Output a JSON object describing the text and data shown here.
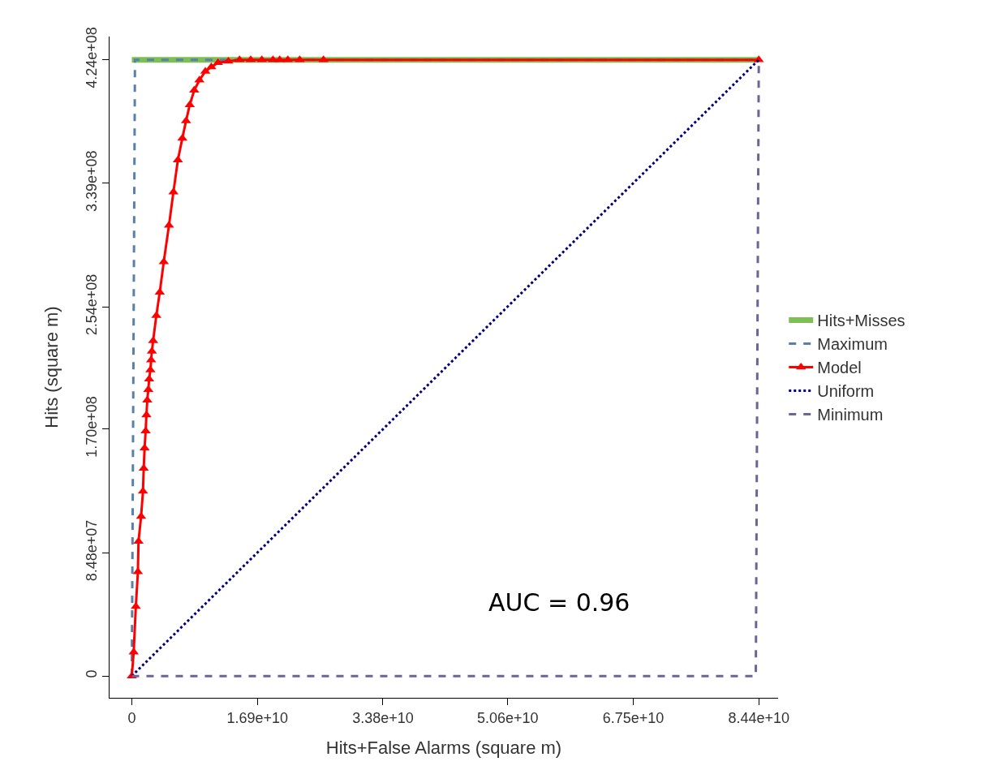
{
  "chart_data": {
    "type": "line",
    "xlabel": "Hits+False Alarms (square m)",
    "ylabel": "Hits (square m)",
    "xlim": [
      -3000000000.0,
      87000000000.0
    ],
    "ylim": [
      -15000000.0,
      440000000.0
    ],
    "xticks": [
      0,
      {
        "value": 16900000000,
        "label": "1.69e+10"
      },
      {
        "value": 33800000000,
        "label": "3.38e+10"
      },
      {
        "value": 50600000000,
        "label": "5.06e+10"
      },
      {
        "value": 67500000000,
        "label": "6.75e+10"
      },
      {
        "value": 84400000000,
        "label": "8.44e+10"
      }
    ],
    "yticks": [
      0,
      {
        "value": 84800000,
        "label": "8.48e+07"
      },
      {
        "value": 170000000,
        "label": "1.70e+08"
      },
      {
        "value": 254000000,
        "label": "2.54e+08"
      },
      {
        "value": 339000000,
        "label": "3.39e+08"
      },
      {
        "value": 424000000,
        "label": "4.24e+08"
      }
    ],
    "grid": false,
    "legend": "right",
    "annotations": [
      "AUC = 0.96"
    ],
    "series": [
      {
        "name": "Hits+Misses",
        "color": "#7cc055",
        "line_style": "solid",
        "marker": "none",
        "x": [
          0,
          84400000000
        ],
        "values": [
          424000000,
          424000000
        ]
      },
      {
        "name": "Maximum",
        "color": "#5a7fa8",
        "line_style": "dashed",
        "marker": "none",
        "x": [
          0,
          424000000,
          84400000000
        ],
        "values": [
          0,
          424000000,
          424000000
        ]
      },
      {
        "name": "Model",
        "color": "#ff0000",
        "line_style": "solid",
        "marker": "triangle",
        "x": [
          0,
          250000000,
          540000000,
          820000000,
          900000000,
          1250000000,
          1500000000,
          1600000000,
          1720000000,
          1860000000,
          1970000000,
          2080000000,
          2220000000,
          2330000000,
          2500000000,
          2600000000,
          2700000000,
          2870000000,
          3300000000,
          3760000000,
          4300000000,
          5000000000,
          5600000000,
          6200000000,
          6800000000,
          7300000000,
          7800000000,
          8400000000,
          9100000000,
          9900000000,
          10700000000,
          11600000000,
          13000000000,
          14500000000,
          16000000000,
          17500000000,
          19000000000,
          19900000000,
          21000000000,
          22600000000,
          25800000000,
          84400000000
        ],
        "values": [
          0,
          16400000,
          47800000,
          71700000,
          92600000,
          109800000,
          127100000,
          142800000,
          156800000,
          168500000,
          179600000,
          189700000,
          197000000,
          204200000,
          210600000,
          217400000,
          223400000,
          230700000,
          248000000,
          264000000,
          285000000,
          310000000,
          333000000,
          355000000,
          370000000,
          382000000,
          393000000,
          403000000,
          410000000,
          416000000,
          419000000,
          422000000,
          423000000,
          424000000,
          424000000,
          424000000,
          424000000,
          424000000,
          424000000,
          424000000,
          424000000,
          424000000
        ]
      },
      {
        "name": "Uniform",
        "color": "#00007f",
        "line_style": "dotted",
        "marker": "none",
        "x": [
          0,
          84400000000
        ],
        "values": [
          0,
          424000000
        ]
      },
      {
        "name": "Minimum",
        "color": "#6c6396",
        "line_style": "dashed",
        "marker": "none",
        "x": [
          0,
          84000000000,
          84400000000
        ],
        "values": [
          0,
          0,
          424000000
        ]
      }
    ]
  }
}
